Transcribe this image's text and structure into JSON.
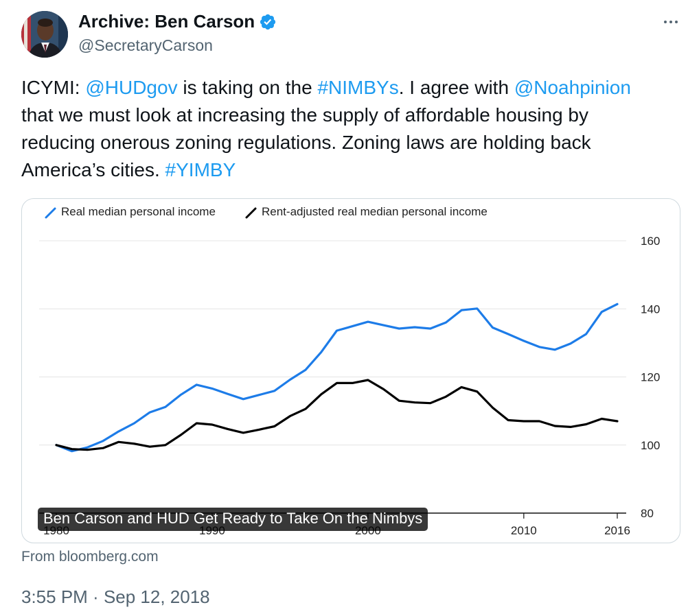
{
  "author": {
    "display_name": "Archive: Ben Carson",
    "handle": "@SecretaryCarson",
    "verified_color": "#1d9bf0"
  },
  "tweet": {
    "line1": {
      "p1": "ICYMI: ",
      "m1": "@HUDgov",
      "p2": " is taking on the ",
      "h1": "#NIMBYs",
      "p3": ". I agree with ",
      "m2": "@Noahpinion"
    },
    "line2": "that we must look at increasing the supply of affordable housing by",
    "line3": "reducing onerous zoning regulations. Zoning laws are holding back",
    "line4": {
      "p1": "America’s cities. ",
      "h1": "#YIMBY"
    }
  },
  "card": {
    "title": "Ben Carson and HUD Get Ready to Take On the Nimbys",
    "source": "From bloomberg.com"
  },
  "time": {
    "clock": "3:55 PM",
    "separator": " · ",
    "date": "Sep 12, 2018"
  },
  "colors": {
    "link": "#1d9bf0",
    "series_blue": "#1d7ce8",
    "series_black": "#000000"
  },
  "chart_data": {
    "type": "line",
    "title": "",
    "xlabel": "",
    "ylabel": "",
    "legend_position": "top-left",
    "xlim": [
      1980,
      2016
    ],
    "ylim": [
      80,
      160
    ],
    "y_ticks": [
      "80",
      "100",
      "120",
      "140",
      "160"
    ],
    "x_ticks": [
      {
        "value": 1980,
        "label": "1980"
      },
      {
        "value": 1990,
        "label": "1990"
      },
      {
        "value": 2000,
        "label": "2000"
      },
      {
        "value": 2010,
        "label": "2010"
      },
      {
        "value": 2016,
        "label": "2016"
      }
    ],
    "x": [
      1980,
      1981,
      1982,
      1983,
      1984,
      1985,
      1986,
      1987,
      1988,
      1989,
      1990,
      1991,
      1992,
      1993,
      1994,
      1995,
      1996,
      1997,
      1998,
      1999,
      2000,
      2001,
      2002,
      2003,
      2004,
      2005,
      2006,
      2007,
      2008,
      2009,
      2010,
      2011,
      2012,
      2013,
      2014,
      2015,
      2016
    ],
    "series": [
      {
        "name": "Real median personal income",
        "color": "#1d7ce8",
        "values": [
          100.0,
          98.2,
          99.3,
          101.2,
          104.0,
          106.4,
          109.6,
          111.2,
          114.8,
          117.7,
          116.6,
          115.0,
          113.5,
          114.7,
          115.9,
          119.2,
          122.1,
          127.3,
          133.6,
          134.9,
          136.2,
          135.2,
          134.2,
          134.6,
          134.2,
          136.0,
          139.6,
          140.1,
          134.5,
          132.6,
          130.6,
          128.8,
          128.0,
          129.8,
          132.6,
          139.1,
          141.4
        ]
      },
      {
        "name": "Rent-adjusted real median personal income",
        "color": "#000000",
        "values": [
          100.0,
          98.8,
          98.6,
          99.1,
          100.9,
          100.4,
          99.5,
          100.0,
          103.0,
          106.4,
          106.0,
          104.7,
          103.6,
          104.5,
          105.5,
          108.5,
          110.6,
          114.9,
          118.2,
          118.2,
          119.1,
          116.4,
          113.0,
          112.5,
          112.3,
          114.2,
          117.0,
          115.7,
          111.0,
          107.3,
          107.0,
          107.0,
          105.6,
          105.3,
          106.1,
          107.7,
          107.0
        ]
      }
    ]
  }
}
